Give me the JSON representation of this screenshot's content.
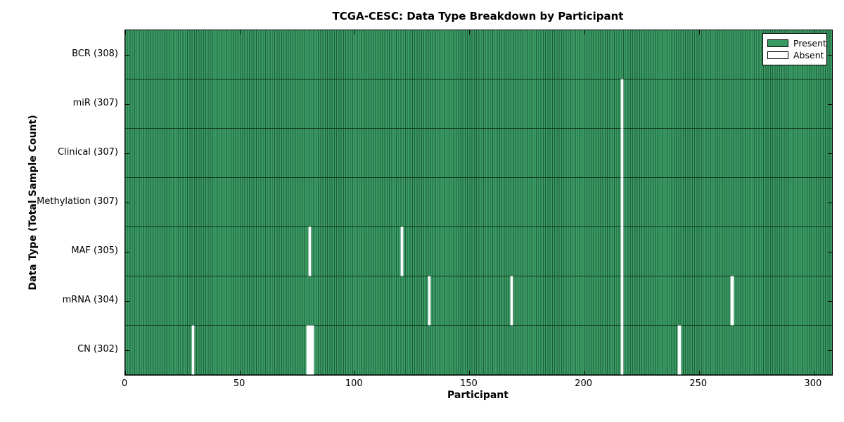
{
  "chart_data": {
    "type": "heatmap",
    "title": "TCGA-CESC: Data Type Breakdown by Participant",
    "xlabel": "Participant",
    "ylabel": "Data Type (Total Sample Count)",
    "n_participants": 308,
    "xlim": [
      0,
      308
    ],
    "x_ticks": [
      0,
      50,
      100,
      150,
      200,
      250,
      300
    ],
    "legend_position": "upper right",
    "grid": false,
    "legend": [
      {
        "label": "Present",
        "color": "#3a9a63"
      },
      {
        "label": "Absent",
        "color": "#ffffff"
      }
    ],
    "colors": {
      "present_fill": "#3a9a63",
      "present_edge": "#1e5c38",
      "absent_fill": "#ffffff",
      "row_separator": "#0e3620",
      "spine": "#000000"
    },
    "rows": [
      {
        "data_type": "BCR",
        "label": "BCR (308)",
        "present_count": 308,
        "absent_participants": []
      },
      {
        "data_type": "miR",
        "label": "miR (307)",
        "present_count": 307,
        "absent_participants": [
          216
        ]
      },
      {
        "data_type": "Clinical",
        "label": "Clinical (307)",
        "present_count": 307,
        "absent_participants": [
          216
        ]
      },
      {
        "data_type": "Methylation",
        "label": "Methylation (307)",
        "present_count": 307,
        "absent_participants": [
          216
        ]
      },
      {
        "data_type": "MAF",
        "label": "MAF (305)",
        "present_count": 305,
        "absent_participants": [
          80,
          120,
          216
        ]
      },
      {
        "data_type": "mRNA",
        "label": "mRNA (304)",
        "present_count": 304,
        "absent_participants": [
          132,
          168,
          216,
          264
        ]
      },
      {
        "data_type": "CN",
        "label": "CN (302)",
        "present_count": 302,
        "absent_participants": [
          29,
          79,
          80,
          81,
          216,
          241
        ]
      }
    ]
  }
}
